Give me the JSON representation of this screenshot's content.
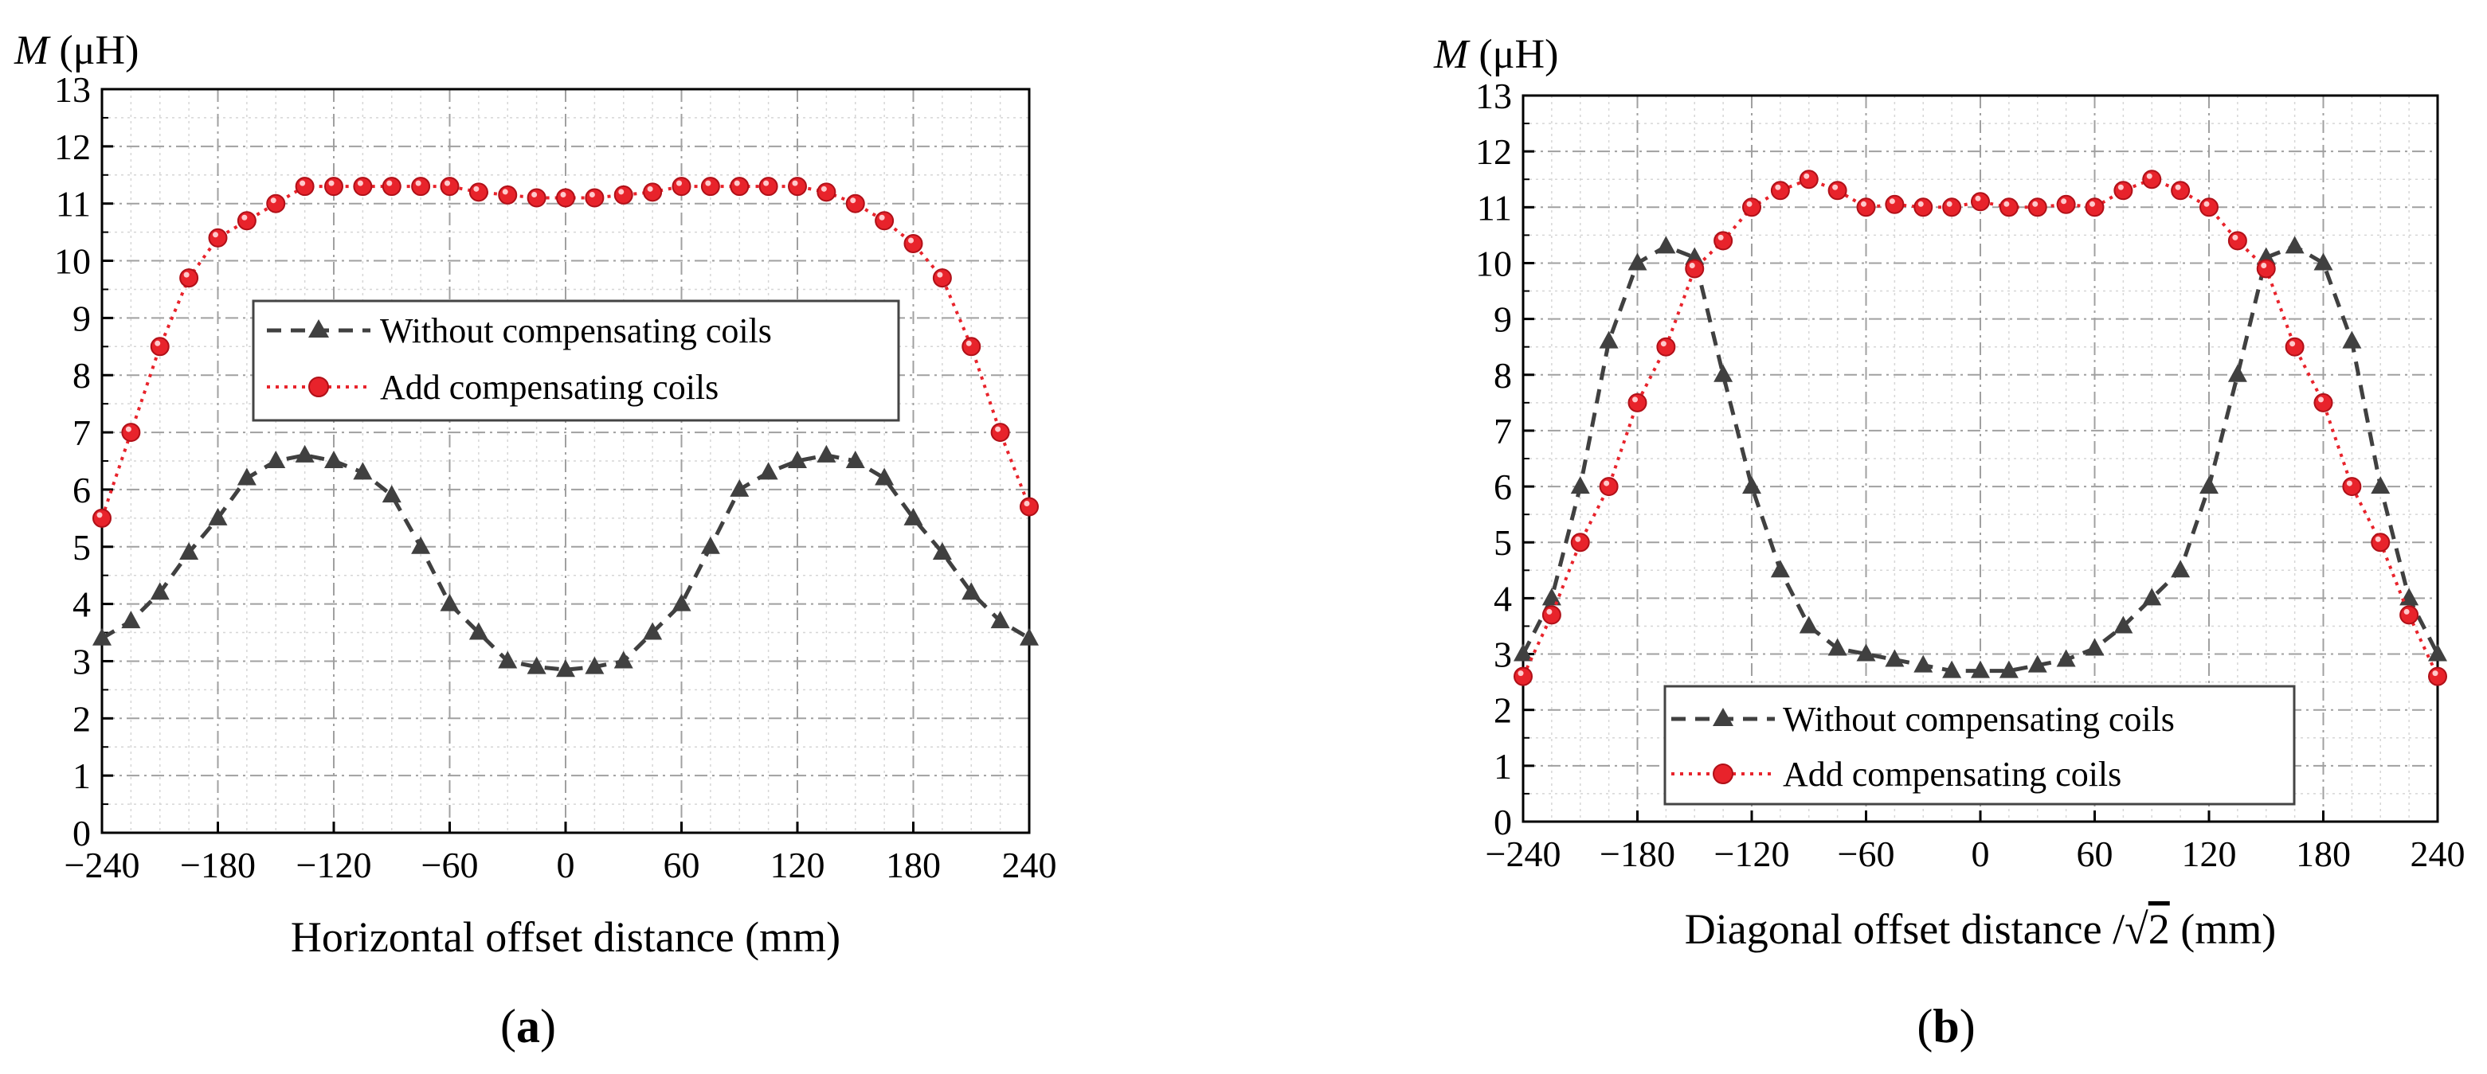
{
  "figure": {
    "panels": [
      {
        "id": "a",
        "panel_label": {
          "open": "(",
          "letter": "a",
          "close": ")"
        },
        "ylabel": {
          "var": "M",
          "unit": " (μH)"
        },
        "xlabel": "Horizontal offset distance (mm)",
        "legend": [
          "Without compensating coils",
          "Add compensating coils"
        ]
      },
      {
        "id": "b",
        "panel_label": {
          "open": "(",
          "letter": "b",
          "close": ")"
        },
        "ylabel": {
          "var": "M",
          "unit": " (μH)"
        },
        "xlabel": {
          "before": "Diagonal offset distance /",
          "sqrt_sign": "√",
          "sqrt_arg": "2",
          "after": " (mm)"
        },
        "legend": [
          "Without compensating coils",
          "Add compensating coils"
        ]
      }
    ]
  },
  "colors": {
    "series_without": "#404040",
    "series_add": "#e8232b",
    "grid": "#a0a0a0"
  },
  "chart_data": [
    {
      "type": "line",
      "ylabel": "M (μH)",
      "xlabel": "Horizontal offset distance (mm)",
      "xlim": [
        -240,
        240
      ],
      "ylim": [
        0,
        13
      ],
      "xticks": [
        -240,
        -180,
        -120,
        -60,
        0,
        60,
        120,
        180,
        240
      ],
      "xtick_labels": [
        "−240",
        "−180",
        "−120",
        "−60",
        "0",
        "60",
        "120",
        "180",
        "240"
      ],
      "yticks": [
        0,
        1,
        2,
        3,
        4,
        5,
        6,
        7,
        8,
        9,
        10,
        11,
        12,
        13
      ],
      "grid": true,
      "legend_position": "center",
      "series": [
        {
          "name": "Without compensating coils",
          "marker": "triangle",
          "linestyle": "dashed",
          "x": [
            -240,
            -225,
            -210,
            -195,
            -180,
            -165,
            -150,
            -135,
            -120,
            -105,
            -90,
            -75,
            -60,
            -45,
            -30,
            -15,
            0,
            15,
            30,
            45,
            60,
            75,
            90,
            105,
            120,
            135,
            150,
            165,
            180,
            195,
            210,
            225,
            240
          ],
          "y": [
            3.4,
            3.7,
            4.2,
            4.9,
            5.5,
            6.2,
            6.5,
            6.6,
            6.5,
            6.3,
            5.9,
            5.0,
            4.0,
            3.5,
            3.0,
            2.9,
            2.85,
            2.9,
            3.0,
            3.5,
            4.0,
            5.0,
            6.0,
            6.3,
            6.5,
            6.6,
            6.5,
            6.2,
            5.5,
            4.9,
            4.2,
            3.7,
            3.4
          ]
        },
        {
          "name": "Add compensating coils",
          "marker": "circle",
          "linestyle": "dotted",
          "x": [
            -240,
            -225,
            -210,
            -195,
            -180,
            -165,
            -150,
            -135,
            -120,
            -105,
            -90,
            -75,
            -60,
            -45,
            -30,
            -15,
            0,
            15,
            30,
            45,
            60,
            75,
            90,
            105,
            120,
            135,
            150,
            165,
            180,
            195,
            210,
            225,
            240
          ],
          "y": [
            5.5,
            7.0,
            8.5,
            9.7,
            10.4,
            10.7,
            11.0,
            11.3,
            11.3,
            11.3,
            11.3,
            11.3,
            11.3,
            11.2,
            11.15,
            11.1,
            11.1,
            11.1,
            11.15,
            11.2,
            11.3,
            11.3,
            11.3,
            11.3,
            11.3,
            11.2,
            11.0,
            10.7,
            10.3,
            9.7,
            8.5,
            7.0,
            5.7
          ]
        }
      ]
    },
    {
      "type": "line",
      "ylabel": "M (μH)",
      "xlabel": "Diagonal offset distance /√2 (mm)",
      "xlim": [
        -240,
        240
      ],
      "ylim": [
        0,
        13
      ],
      "xticks": [
        -240,
        -180,
        -120,
        -60,
        0,
        60,
        120,
        180,
        240
      ],
      "xtick_labels": [
        "−240",
        "−180",
        "−120",
        "−60",
        "0",
        "60",
        "120",
        "180",
        "240"
      ],
      "yticks": [
        0,
        1,
        2,
        3,
        4,
        5,
        6,
        7,
        8,
        9,
        10,
        11,
        12,
        13
      ],
      "grid": true,
      "legend_position": "bottom-center",
      "series": [
        {
          "name": "Without compensating coils",
          "marker": "triangle",
          "linestyle": "dashed",
          "x": [
            -240,
            -225,
            -210,
            -195,
            -180,
            -165,
            -150,
            -135,
            -120,
            -105,
            -90,
            -75,
            -60,
            -45,
            -30,
            -15,
            0,
            15,
            30,
            45,
            60,
            75,
            90,
            105,
            120,
            135,
            150,
            165,
            180,
            195,
            210,
            225,
            240
          ],
          "y": [
            3.0,
            4.0,
            6.0,
            8.6,
            10.0,
            10.3,
            10.1,
            8.0,
            6.0,
            4.5,
            3.5,
            3.1,
            3.0,
            2.9,
            2.8,
            2.7,
            2.7,
            2.7,
            2.8,
            2.9,
            3.1,
            3.5,
            4.0,
            4.5,
            6.0,
            8.0,
            10.1,
            10.3,
            10.0,
            8.6,
            6.0,
            4.0,
            3.0
          ]
        },
        {
          "name": "Add compensating coils",
          "marker": "circle",
          "linestyle": "dotted",
          "x": [
            -240,
            -225,
            -210,
            -195,
            -180,
            -165,
            -150,
            -135,
            -120,
            -105,
            -90,
            -75,
            -60,
            -45,
            -30,
            -15,
            0,
            15,
            30,
            45,
            60,
            75,
            90,
            105,
            120,
            135,
            150,
            165,
            180,
            195,
            210,
            225,
            240
          ],
          "y": [
            2.6,
            3.7,
            5.0,
            6.0,
            7.5,
            8.5,
            9.9,
            10.4,
            11.0,
            11.3,
            11.5,
            11.3,
            11.0,
            11.05,
            11.0,
            11.0,
            11.1,
            11.0,
            11.0,
            11.05,
            11.0,
            11.3,
            11.5,
            11.3,
            11.0,
            10.4,
            9.9,
            8.5,
            7.5,
            6.0,
            5.0,
            3.7,
            2.6
          ]
        }
      ]
    }
  ]
}
